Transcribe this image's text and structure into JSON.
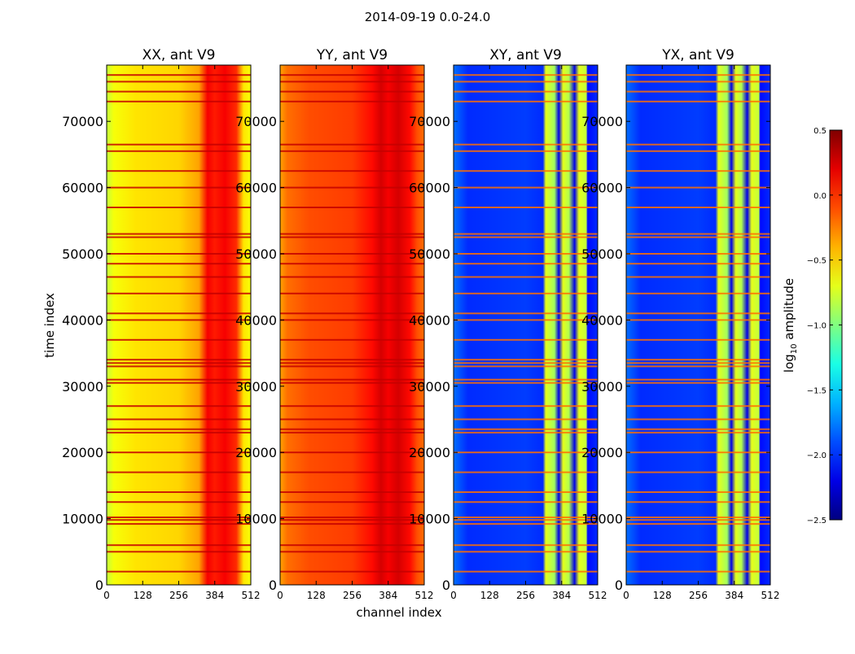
{
  "figure": {
    "suptitle": "2014-09-19 0.0-24.0"
  },
  "chart_data": {
    "type": "heatmap",
    "title": "2014-09-19 0.0-24.0",
    "xlabel": "channel index",
    "ylabel": "time index",
    "xlim": [
      0,
      512
    ],
    "ylim": [
      0,
      78500
    ],
    "x_ticks": [
      0,
      128,
      256,
      384,
      512
    ],
    "x_tick_labels": [
      "0",
      "128",
      "256",
      "384",
      "512"
    ],
    "y_ticks": [
      0,
      10000,
      20000,
      30000,
      40000,
      50000,
      60000,
      70000
    ],
    "y_tick_labels": [
      "0",
      "10000",
      "20000",
      "30000",
      "40000",
      "50000",
      "60000",
      "70000"
    ],
    "panels": [
      {
        "title": "XX, ant V9",
        "base_level": -0.55,
        "band_level": 0.15,
        "type": "auto"
      },
      {
        "title": "YY, ant V9",
        "base_level": -0.1,
        "band_level": 0.25,
        "type": "auto"
      },
      {
        "title": "XY, ant V9",
        "base_level": -2.0,
        "band_level": -0.7,
        "type": "cross"
      },
      {
        "title": "YX, ant V9",
        "base_level": -2.0,
        "band_level": -0.7,
        "type": "cross"
      }
    ],
    "flagged_time_rows": [
      2000,
      5000,
      6000,
      9200,
      9800,
      10200,
      12500,
      14000,
      17000,
      20000,
      23000,
      23500,
      25000,
      27000,
      30500,
      31000,
      33000,
      33500,
      34000,
      37000,
      40000,
      41000,
      44000,
      46500,
      48500,
      50000,
      52500,
      53000,
      57000,
      60000,
      62500,
      65500,
      66500,
      73000,
      74500,
      76000,
      77000
    ],
    "colorbar": {
      "label": "log10 amplitude",
      "label_main": "log",
      "label_sub": "10",
      "label_rest": " amplitude",
      "range": [
        -2.5,
        0.5
      ],
      "ticks": [
        0.5,
        0.0,
        -0.5,
        -1.0,
        -1.5,
        -2.0,
        -2.5
      ],
      "tick_labels": [
        "0.5",
        "0.0",
        "−0.5",
        "−1.0",
        "−1.5",
        "−2.0",
        "−2.5"
      ],
      "colormap": "jet"
    }
  }
}
